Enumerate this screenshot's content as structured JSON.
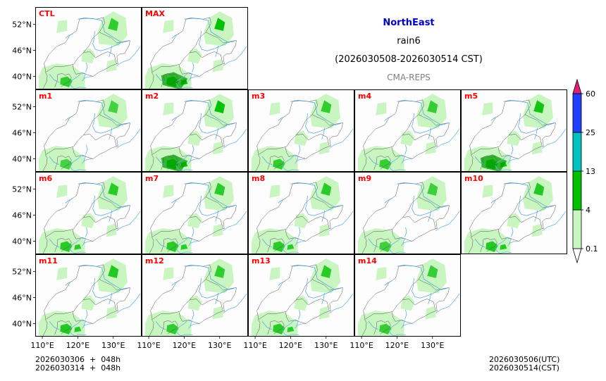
{
  "title": {
    "region": "NorthEast",
    "variable": "rain6",
    "period": "(2026030508-2026030514 CST)",
    "model": "CMA-REPS",
    "region_color": "#0000cc",
    "model_color": "#808080"
  },
  "panels": [
    {
      "label": "CTL",
      "intensity": 0.9
    },
    {
      "label": "MAX",
      "intensity": 1.8
    },
    {
      "label": "m1",
      "intensity": 0.6
    },
    {
      "label": "m2",
      "intensity": 1.5
    },
    {
      "label": "m3",
      "intensity": 0.9
    },
    {
      "label": "m4",
      "intensity": 0.8
    },
    {
      "label": "m5",
      "intensity": 1.3
    },
    {
      "label": "m6",
      "intensity": 1.0
    },
    {
      "label": "m7",
      "intensity": 1.0
    },
    {
      "label": "m8",
      "intensity": 1.0
    },
    {
      "label": "m9",
      "intensity": 0.7
    },
    {
      "label": "m10",
      "intensity": 1.1
    },
    {
      "label": "m11",
      "intensity": 1.1
    },
    {
      "label": "m12",
      "intensity": 0.9
    },
    {
      "label": "m13",
      "intensity": 1.0
    },
    {
      "label": "m14",
      "intensity": 0.8
    }
  ],
  "panel_label_color": "#ff0000",
  "lat_ticks": [
    "52°N",
    "46°N",
    "40°N"
  ],
  "lon_ticks": [
    "110°E",
    "120°E",
    "130°E"
  ],
  "colorbar": {
    "levels": [
      "0.1",
      "4",
      "13",
      "25",
      "60"
    ],
    "colors": [
      "#c8f5c0",
      "#00c000",
      "#00c0c0",
      "#2040ff"
    ],
    "extend_max_color": "#e0207a",
    "extend_min_color": "#ffffff"
  },
  "footer": {
    "left_line1": "2026030306  +  048h",
    "left_line2": "2026030314  +  048h",
    "right_line1": "2026030506(UTC)",
    "right_line2": "2026030514(CST)"
  }
}
